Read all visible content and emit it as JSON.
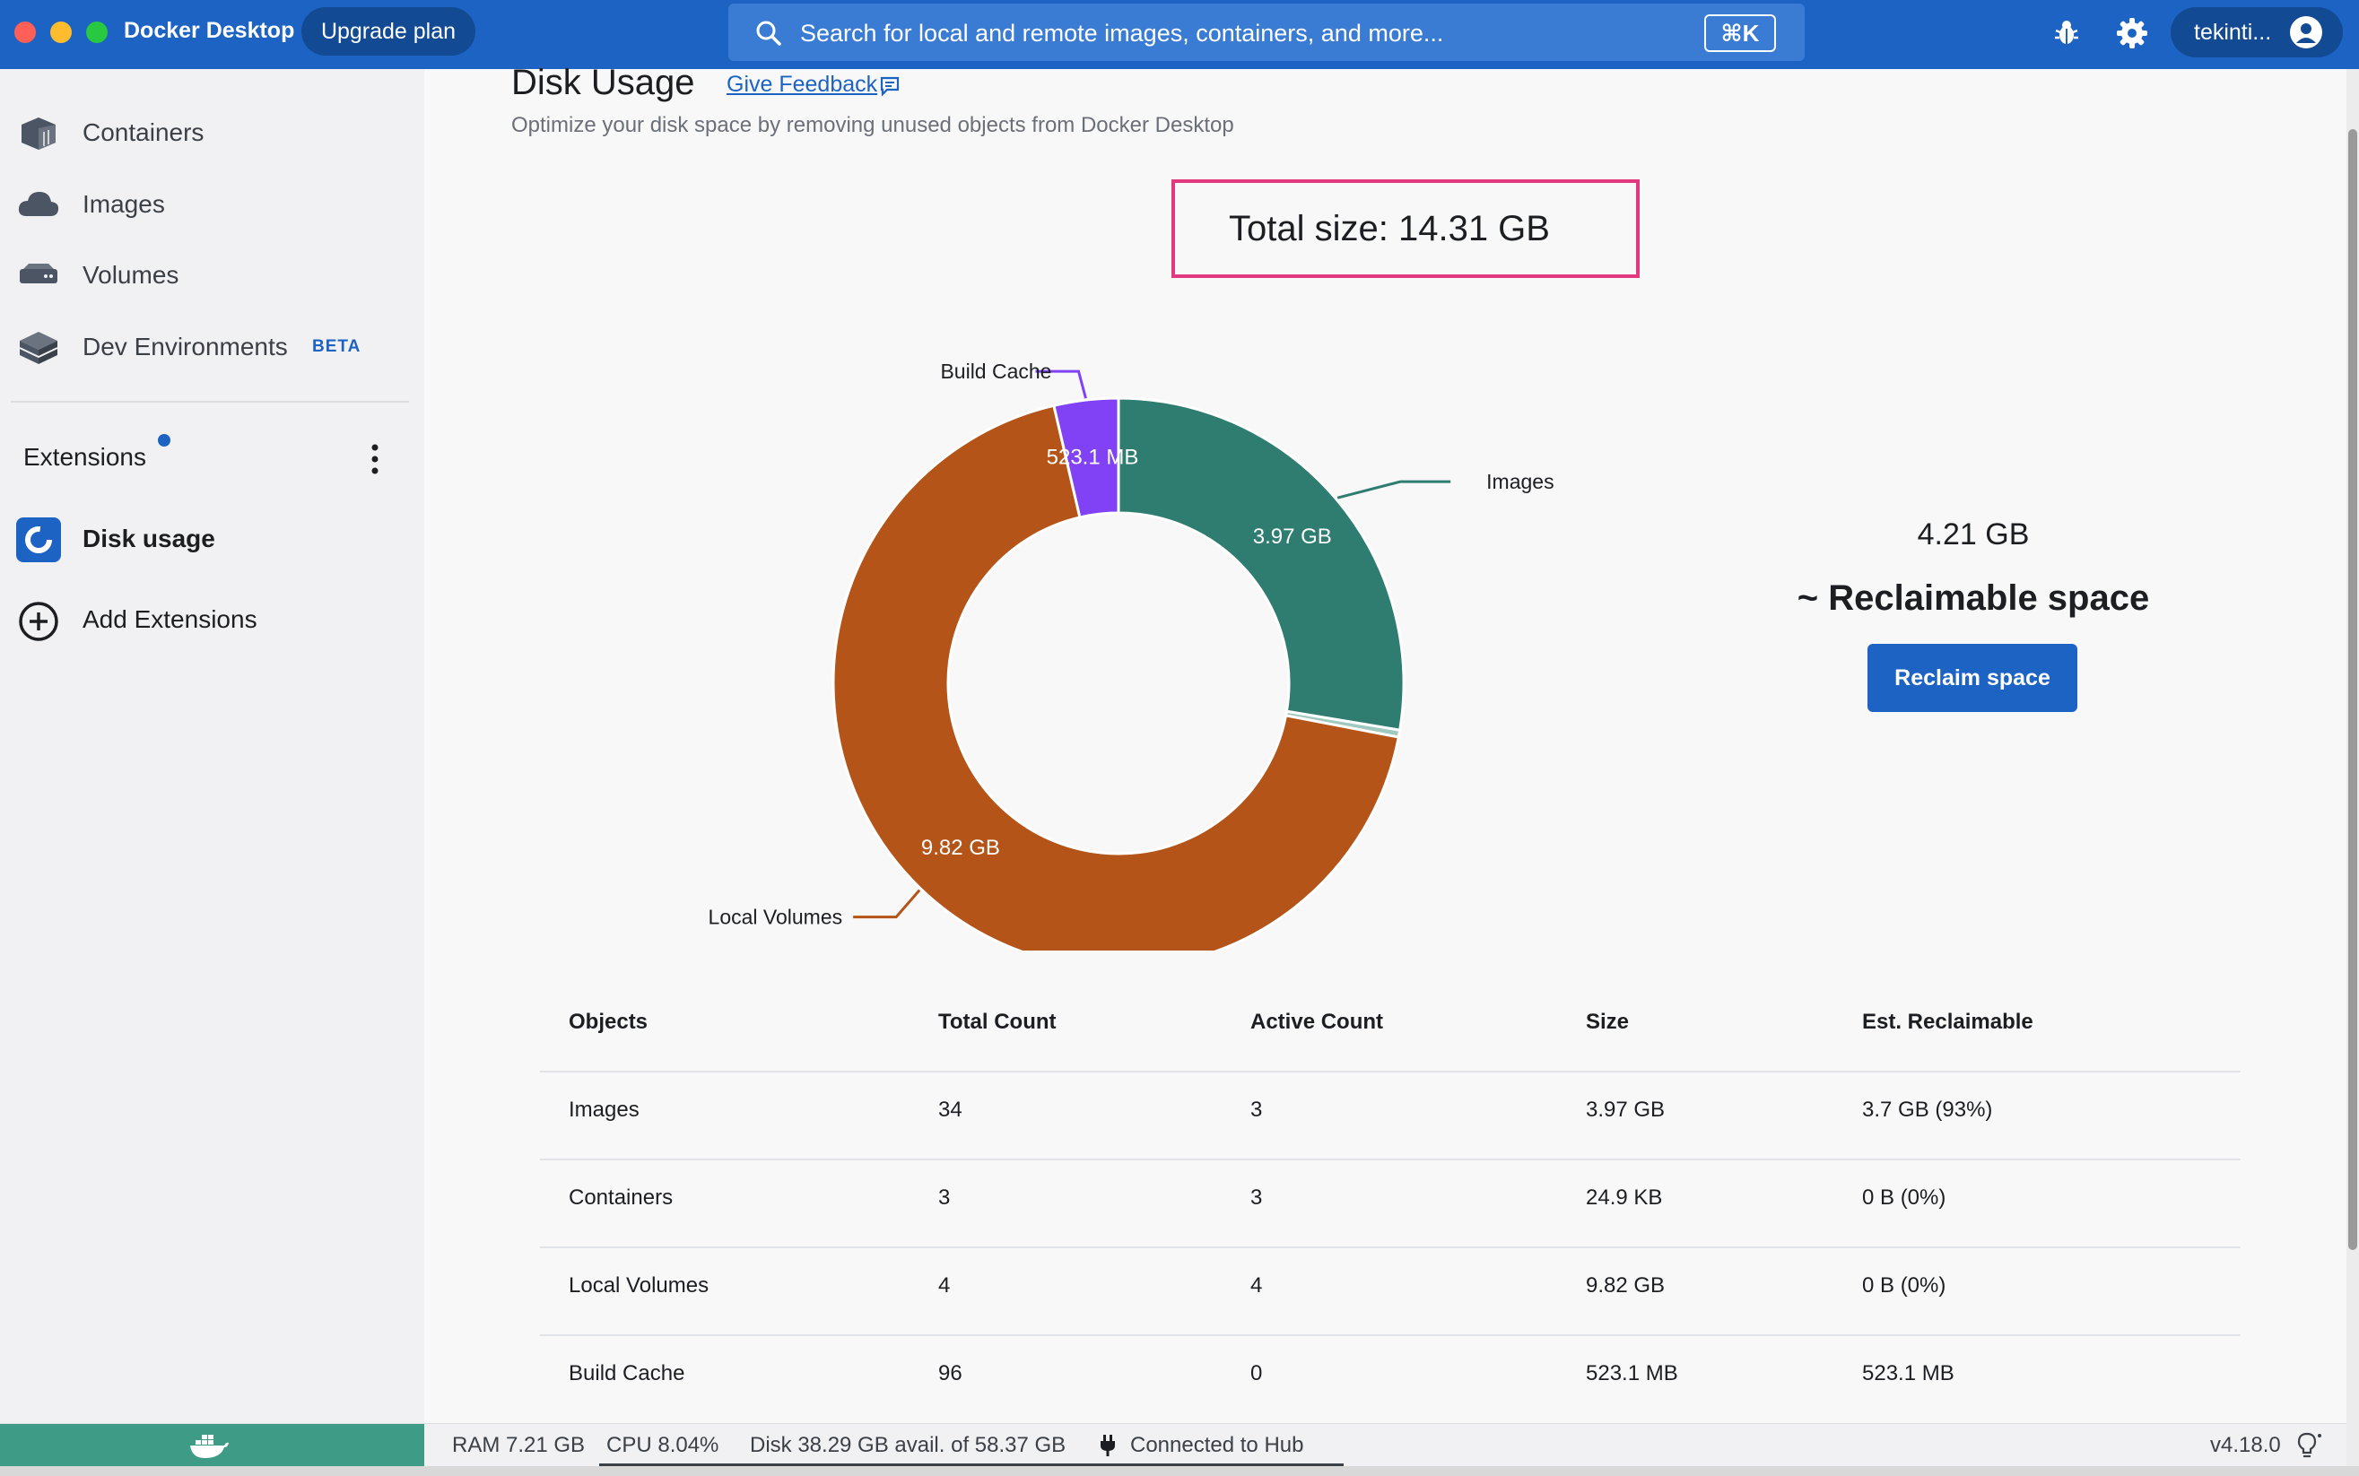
{
  "titlebar": {
    "app_title": "Docker Desktop",
    "upgrade_label": "Upgrade plan",
    "search_placeholder": "Search for local and remote images, containers, and more...",
    "search_shortcut": "⌘K",
    "user_name": "tekinti...",
    "brand_color": "#1d63c4"
  },
  "sidebar": {
    "items": [
      {
        "label": "Containers",
        "icon": "container-icon"
      },
      {
        "label": "Images",
        "icon": "cloud-icon"
      },
      {
        "label": "Volumes",
        "icon": "volume-icon"
      },
      {
        "label": "Dev Environments",
        "icon": "dev-environments-icon",
        "badge": "BETA"
      }
    ],
    "extensions_title": "Extensions",
    "disk_usage_label": "Disk usage",
    "add_extensions_label": "Add Extensions"
  },
  "main": {
    "title": "Disk Usage",
    "feedback_label": "Give Feedback",
    "subtitle": "Optimize your disk space by removing unused objects from Docker Desktop",
    "total_size": "Total size: 14.31 GB",
    "reclaimable_amount": "4.21 GB",
    "reclaimable_label": "~ Reclaimable space",
    "reclaim_button": "Reclaim space"
  },
  "chart_data": {
    "type": "pie",
    "donut": true,
    "categories": [
      "Images",
      "Containers",
      "Local Volumes",
      "Build Cache"
    ],
    "values": [
      3.97,
      2.49e-05,
      9.82,
      0.5231
    ],
    "data_labels": [
      "3.97 GB",
      "",
      "9.82 GB",
      "523.1 MB"
    ],
    "colors": [
      "#2f7d70",
      "#9fc8be",
      "#b45418",
      "#8142f5"
    ],
    "slice_labels": [
      "Images",
      "",
      "Local Volumes",
      "Build Cache"
    ]
  },
  "table": {
    "headers": [
      "Objects",
      "Total Count",
      "Active Count",
      "Size",
      "Est. Reclaimable"
    ],
    "rows": [
      [
        "Images",
        "34",
        "3",
        "3.97 GB",
        "3.7 GB (93%)"
      ],
      [
        "Containers",
        "3",
        "3",
        "24.9 KB",
        "0 B (0%)"
      ],
      [
        "Local Volumes",
        "4",
        "4",
        "9.82 GB",
        "0 B (0%)"
      ],
      [
        "Build Cache",
        "96",
        "0",
        "523.1 MB",
        "523.1 MB"
      ]
    ]
  },
  "statusbar": {
    "ram": "RAM 7.21 GB",
    "cpu": "CPU 8.04%",
    "disk": "Disk 38.29 GB avail. of 58.37 GB",
    "hub": "Connected to Hub",
    "version": "v4.18.0"
  }
}
